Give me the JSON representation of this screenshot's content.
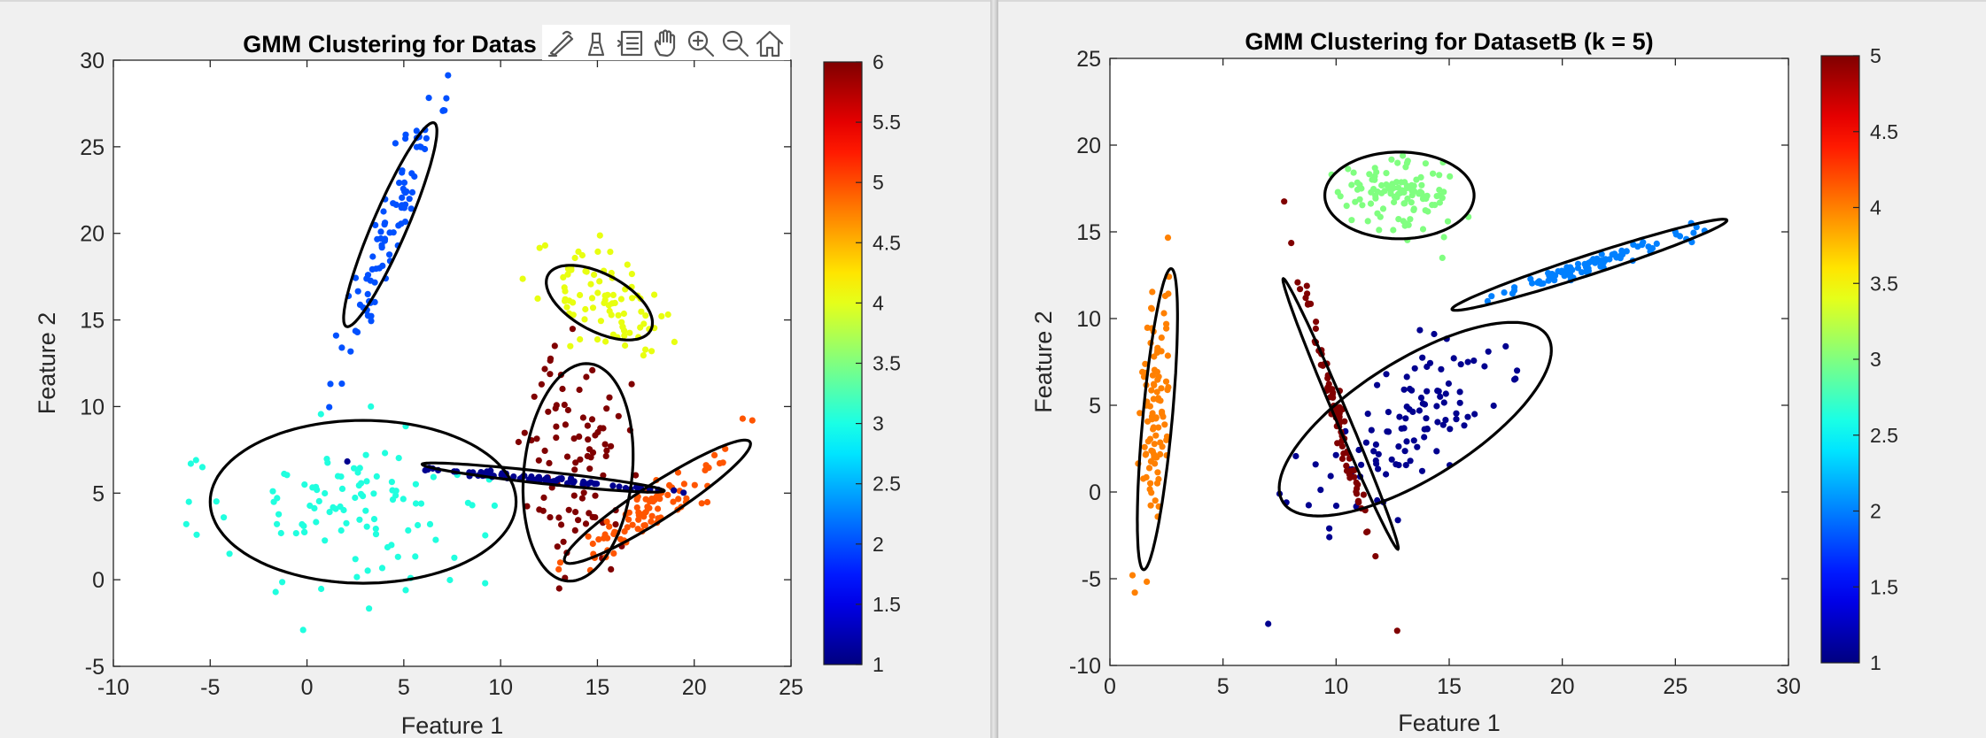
{
  "chart_data": [
    {
      "type": "scatter",
      "title": "GMM Clustering for Datas",
      "xlabel": "Feature 1",
      "ylabel": "Feature 2",
      "xlim": [
        -10,
        25
      ],
      "ylim": [
        -5,
        30
      ],
      "xticks": [
        "-10",
        "-5",
        "0",
        "5",
        "10",
        "15",
        "20",
        "25"
      ],
      "yticks": [
        "-5",
        "0",
        "5",
        "10",
        "15",
        "20",
        "25",
        "30"
      ],
      "grid": false,
      "colorbar": {
        "range": [
          1,
          6
        ],
        "ticks": [
          "1",
          "1.5",
          "2",
          "2.5",
          "3",
          "3.5",
          "4",
          "4.5",
          "5",
          "5.5",
          "6"
        ]
      },
      "colors": {
        "1": "#00008f",
        "2": "#0050ff",
        "3": "#20ffdf",
        "4": "#e8ff10",
        "5": "#ff5500",
        "6": "#800000"
      },
      "clusters": [
        {
          "label": 2,
          "center": [
            4.3,
            20.4
          ],
          "sd": [
            1.25,
            4.0
          ],
          "rho": 0.93,
          "n": 90,
          "seed": 11,
          "ellipse": {
            "cx": 4.3,
            "cy": 20.5,
            "a": 6.3,
            "b": 0.9,
            "angle_deg": 69
          }
        },
        {
          "label": 4,
          "center": [
            15.2,
            16.0
          ],
          "sd": [
            1.5,
            1.4
          ],
          "rho": -0.45,
          "n": 85,
          "seed": 23,
          "ellipse": {
            "cx": 15.1,
            "cy": 16.0,
            "a": 3.1,
            "b": 1.6,
            "angle_deg": -33
          }
        },
        {
          "label": 6,
          "center": [
            14.0,
            7.0
          ],
          "sd": [
            1.3,
            3.1
          ],
          "rho": 0.05,
          "n": 90,
          "seed": 37,
          "ellipse": {
            "cx": 14.0,
            "cy": 6.2,
            "a": 6.3,
            "b": 2.8,
            "angle_deg": 85
          }
        },
        {
          "label": 5,
          "center": [
            18.0,
            4.2
          ],
          "sd": [
            2.1,
            1.6
          ],
          "rho": 0.92,
          "n": 85,
          "seed": 41,
          "ellipse": {
            "cx": 18.1,
            "cy": 4.5,
            "a": 5.9,
            "b": 1.0,
            "angle_deg": 36
          }
        },
        {
          "label": 3,
          "center": [
            2.8,
            4.3
          ],
          "sd": [
            3.4,
            2.1
          ],
          "rho": 0.0,
          "n": 95,
          "seed": 53,
          "ellipse": {
            "cx": 2.9,
            "cy": 4.5,
            "a": 7.9,
            "b": 4.7,
            "angle_deg": 0
          }
        },
        {
          "label": 1,
          "center": [
            12.0,
            5.8
          ],
          "sd": [
            3.4,
            0.36
          ],
          "rho": -0.97,
          "n": 80,
          "seed": 67,
          "ellipse": {
            "cx": 12.2,
            "cy": 5.9,
            "a": 6.3,
            "b": 0.35,
            "angle_deg": -7
          }
        }
      ],
      "extra_points": [
        {
          "x": -6.0,
          "y": 6.7,
          "label": 3
        },
        {
          "x": -5.4,
          "y": 6.5,
          "label": 3
        },
        {
          "x": -6.1,
          "y": 4.5,
          "label": 3
        },
        {
          "x": -5.7,
          "y": 2.6,
          "label": 3
        },
        {
          "x": -4.3,
          "y": 3.6,
          "label": 3
        },
        {
          "x": -4.0,
          "y": 1.5,
          "label": 3
        },
        {
          "x": -0.2,
          "y": -2.9,
          "label": 3
        },
        {
          "x": 3.3,
          "y": 10.0,
          "label": 3
        },
        {
          "x": 9.2,
          "y": -0.2,
          "label": 3
        },
        {
          "x": 5.1,
          "y": -0.6,
          "label": 3
        },
        {
          "x": 1.8,
          "y": 13.4,
          "label": 2
        },
        {
          "x": 1.5,
          "y": 14.1,
          "label": 2
        },
        {
          "x": 7.2,
          "y": 27.8,
          "label": 2
        },
        {
          "x": 7.1,
          "y": 27.1,
          "label": 2
        },
        {
          "x": 22.5,
          "y": 9.3,
          "label": 5
        },
        {
          "x": 23.0,
          "y": 9.2,
          "label": 5
        },
        {
          "x": 13.0,
          "y": 0.6,
          "label": 5
        },
        {
          "x": 12.8,
          "y": 13.5,
          "label": 6
        },
        {
          "x": 15.7,
          "y": 0.6,
          "label": 6
        },
        {
          "x": 17.8,
          "y": 13.2,
          "label": 4
        },
        {
          "x": 12.3,
          "y": 19.3,
          "label": 4
        }
      ]
    },
    {
      "type": "scatter",
      "title": "GMM Clustering for DatasetB (k = 5)",
      "xlabel": "Feature 1",
      "ylabel": "Feature 2",
      "xlim": [
        0,
        30
      ],
      "ylim": [
        -10,
        25
      ],
      "xticks": [
        "0",
        "5",
        "10",
        "15",
        "20",
        "25",
        "30"
      ],
      "yticks": [
        "-10",
        "-5",
        "0",
        "5",
        "10",
        "15",
        "20",
        "25"
      ],
      "grid": false,
      "colorbar": {
        "range": [
          1,
          5
        ],
        "ticks": [
          "1",
          "1.5",
          "2",
          "2.5",
          "3",
          "3.5",
          "4",
          "4.5",
          "5"
        ]
      },
      "colors": {
        "1": "#00008f",
        "2": "#0080ff",
        "3": "#80ff80",
        "4": "#ff8000",
        "5": "#800000"
      },
      "clusters": [
        {
          "label": 3,
          "center": [
            12.8,
            17.2
          ],
          "sd": [
            1.3,
            1.05
          ],
          "rho": 0.0,
          "n": 110,
          "seed": 13,
          "ellipse": {
            "cx": 12.8,
            "cy": 17.1,
            "a": 3.3,
            "b": 2.5,
            "angle_deg": 0
          }
        },
        {
          "label": 2,
          "center": [
            21.0,
            13.0
          ],
          "sd": [
            2.0,
            0.85
          ],
          "rho": 0.97,
          "n": 85,
          "seed": 29,
          "ellipse": {
            "cx": 21.2,
            "cy": 13.1,
            "a": 6.6,
            "b": 0.55,
            "angle_deg": 23
          }
        },
        {
          "label": 4,
          "center": [
            2.0,
            4.5
          ],
          "sd": [
            0.35,
            3.6
          ],
          "rho": 0.3,
          "n": 95,
          "seed": 31,
          "ellipse": {
            "cx": 2.1,
            "cy": 4.2,
            "a": 8.7,
            "b": 0.65,
            "angle_deg": 86
          }
        },
        {
          "label": 1,
          "center": [
            13.2,
            4.2
          ],
          "sd": [
            2.2,
            2.6
          ],
          "rho": 0.62,
          "n": 105,
          "seed": 43,
          "ellipse": {
            "cx": 13.5,
            "cy": 4.2,
            "a": 7.6,
            "b": 3.1,
            "angle_deg": 42
          }
        },
        {
          "label": 5,
          "center": [
            10.0,
            4.5
          ],
          "sd": [
            0.8,
            3.9
          ],
          "rho": -0.99,
          "n": 85,
          "seed": 59,
          "ellipse": {
            "cx": 10.2,
            "cy": 4.5,
            "a": 8.2,
            "b": 0.3,
            "angle_deg": -72
          }
        }
      ],
      "extra_points": [
        {
          "x": 7.0,
          "y": -7.6,
          "label": 1
        },
        {
          "x": 7.5,
          "y": -0.1,
          "label": 1
        },
        {
          "x": 7.8,
          "y": -0.6,
          "label": 1
        },
        {
          "x": 9.7,
          "y": -2.6,
          "label": 1
        },
        {
          "x": 18.0,
          "y": 7.0,
          "label": 1
        },
        {
          "x": 17.5,
          "y": 8.4,
          "label": 1
        },
        {
          "x": 12.7,
          "y": -8.0,
          "label": 5
        },
        {
          "x": 25.7,
          "y": 15.5,
          "label": 2
        },
        {
          "x": 25.0,
          "y": 15.0,
          "label": 2
        },
        {
          "x": 16.7,
          "y": 11.0,
          "label": 2
        },
        {
          "x": 1.0,
          "y": -4.8,
          "label": 4
        },
        {
          "x": 1.1,
          "y": -5.8,
          "label": 4
        },
        {
          "x": 14.7,
          "y": 13.5,
          "label": 3
        }
      ]
    }
  ],
  "toolbar": [
    "edit-brush-icon",
    "data-cursor-icon",
    "legend-icon",
    "pan-hand-icon",
    "zoom-in-icon",
    "zoom-out-icon",
    "home-icon"
  ]
}
